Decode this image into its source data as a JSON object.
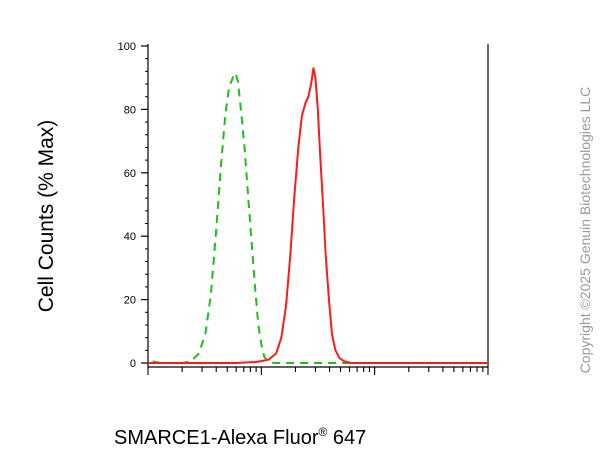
{
  "chart_data": {
    "type": "line",
    "ylabel": "Cell Counts (% Max)",
    "xlabel": {
      "main": "SMARCE1-Alexa Fluor",
      "superscript": "®",
      "suffix": " 647"
    },
    "x_scale": "log",
    "xlim": [
      10,
      10000
    ],
    "ylim": [
      0,
      100
    ],
    "yticks": [
      0,
      20,
      40,
      60,
      80,
      100
    ],
    "ytick_labels": [
      "0",
      "20",
      "40",
      "60",
      "80",
      "100"
    ],
    "grid": false,
    "series": [
      {
        "style": "dashed",
        "color": "#22bb22",
        "points": [
          [
            11,
            0.5
          ],
          [
            13,
            0
          ],
          [
            20,
            0
          ],
          [
            24,
            0.5
          ],
          [
            28,
            3
          ],
          [
            32,
            9
          ],
          [
            36,
            22
          ],
          [
            40,
            42
          ],
          [
            44,
            62
          ],
          [
            48,
            78
          ],
          [
            52,
            87
          ],
          [
            56,
            90
          ],
          [
            59,
            91.5
          ],
          [
            62,
            89
          ],
          [
            66,
            80
          ],
          [
            71,
            68
          ],
          [
            76,
            54
          ],
          [
            82,
            38
          ],
          [
            88,
            24
          ],
          [
            94,
            12
          ],
          [
            100,
            6
          ],
          [
            106,
            2
          ],
          [
            114,
            0.5
          ],
          [
            130,
            0
          ],
          [
            10000,
            0
          ]
        ]
      },
      {
        "style": "solid",
        "color": "#ff1a1a",
        "points": [
          [
            10,
            0
          ],
          [
            60,
            0
          ],
          [
            90,
            0.3
          ],
          [
            115,
            1
          ],
          [
            135,
            3
          ],
          [
            150,
            8
          ],
          [
            165,
            18
          ],
          [
            180,
            34
          ],
          [
            195,
            52
          ],
          [
            212,
            68
          ],
          [
            228,
            78
          ],
          [
            245,
            82
          ],
          [
            260,
            84
          ],
          [
            275,
            88
          ],
          [
            288,
            93
          ],
          [
            300,
            90
          ],
          [
            315,
            80
          ],
          [
            330,
            66
          ],
          [
            350,
            50
          ],
          [
            370,
            34
          ],
          [
            395,
            20
          ],
          [
            420,
            9
          ],
          [
            450,
            4
          ],
          [
            490,
            1.5
          ],
          [
            540,
            0.5
          ],
          [
            620,
            0
          ],
          [
            10000,
            0
          ]
        ]
      }
    ]
  },
  "copyright": "Copyright ©2025 Genuin Biotechnologies LLC"
}
